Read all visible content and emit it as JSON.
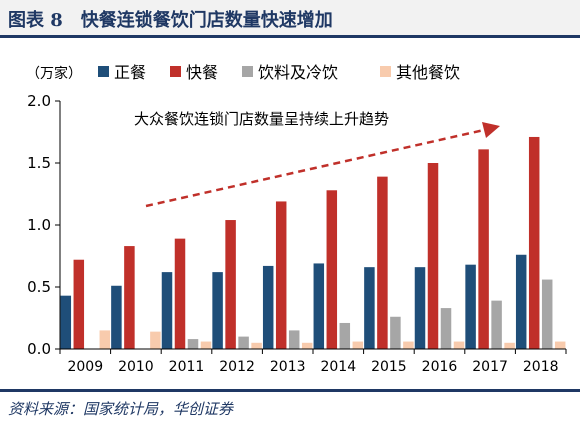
{
  "figure": {
    "title": "图表 8　快餐连锁餐饮门店数量快速增加",
    "source": "资料来源：国家统计局，华创证券"
  },
  "chart_data": {
    "type": "bar",
    "unit_label": "（万家）",
    "categories": [
      "2009",
      "2010",
      "2011",
      "2012",
      "2013",
      "2014",
      "2015",
      "2016",
      "2017",
      "2018"
    ],
    "series": [
      {
        "name": "正餐",
        "color": "#1f4e79",
        "values": [
          0.43,
          0.51,
          0.62,
          0.62,
          0.67,
          0.69,
          0.66,
          0.66,
          0.68,
          0.76
        ]
      },
      {
        "name": "快餐",
        "color": "#c0302a",
        "values": [
          0.72,
          0.83,
          0.89,
          1.04,
          1.19,
          1.28,
          1.39,
          1.5,
          1.61,
          1.71
        ]
      },
      {
        "name": "饮料及冷饮",
        "color": "#a6a6a6",
        "values": [
          0.0,
          0.0,
          0.08,
          0.1,
          0.15,
          0.21,
          0.26,
          0.33,
          0.39,
          0.56
        ]
      },
      {
        "name": "其他餐饮",
        "color": "#f8cbad",
        "values": [
          0.15,
          0.14,
          0.06,
          0.05,
          0.05,
          0.06,
          0.06,
          0.06,
          0.05,
          0.06
        ]
      }
    ],
    "ylim": [
      0,
      2.0
    ],
    "yticks": [
      "0.0",
      "0.5",
      "1.0",
      "1.5",
      "2.0"
    ],
    "annotation": "大众餐饮连锁门店数量呈持续上升趋势",
    "legend_position": "top",
    "grid": false
  }
}
